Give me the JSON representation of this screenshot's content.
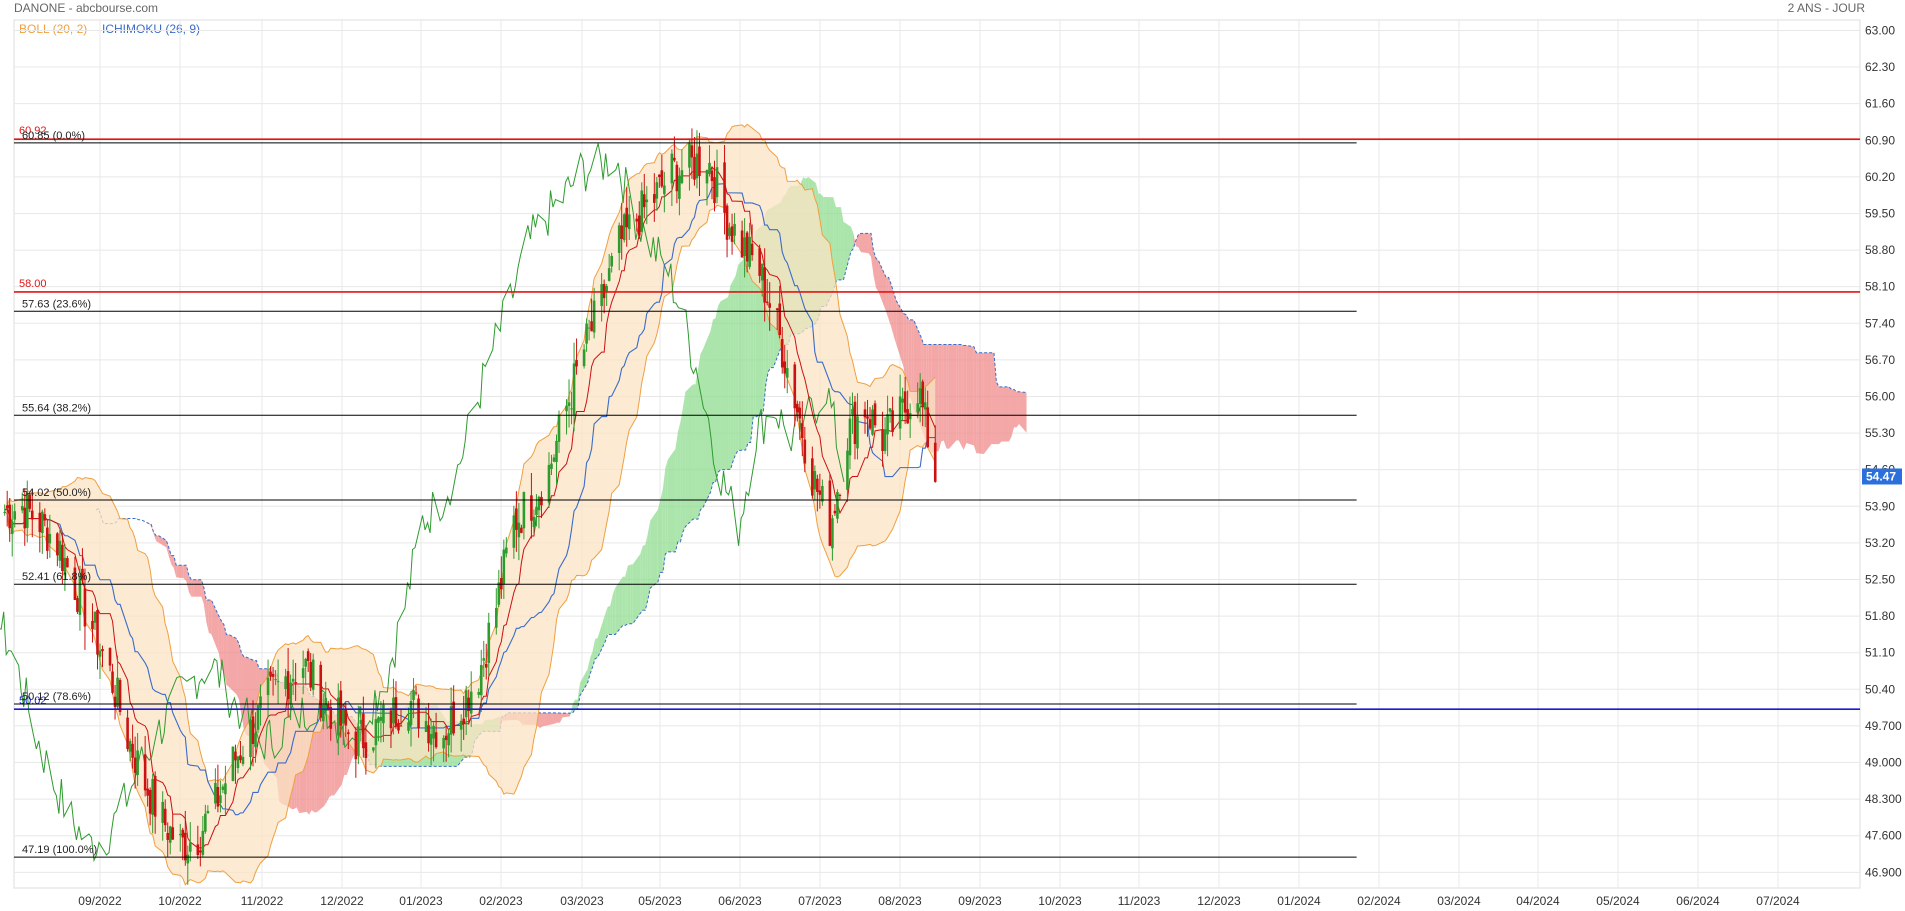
{
  "header": {
    "title": "DANONE - abcbourse.com",
    "period": "2 ANS - JOUR"
  },
  "indicators": {
    "boll": "BOLL (20, 2)",
    "ichimoku": "ICHIMOKU (26, 9)"
  },
  "colors": {
    "candle_up": "#2e9b2e",
    "candle_down": "#cc1111",
    "boll": "#f0a040",
    "boll_fill": "#fbe3c4",
    "tenkan": "#cc1111",
    "kijun": "#3a6cc8",
    "chikou": "#2e9b2e",
    "kumo_bull": "#8fdc8f",
    "kumo_bear": "#f08a8a",
    "resistance": "#e31414",
    "support": "#1a1ad6",
    "fib": "#000000",
    "price_tag": "#2a6fdb",
    "grid": "#e8e8e8"
  },
  "chart_data": {
    "type": "candlestick",
    "x_axis": {
      "ticks": [
        "09/2022",
        "10/2022",
        "11/2022",
        "12/2022",
        "01/2023",
        "02/2023",
        "03/2023",
        "05/2023",
        "06/2023",
        "07/2023",
        "08/2023",
        "09/2023",
        "10/2023",
        "11/2023",
        "12/2023",
        "01/2024",
        "02/2024",
        "03/2024",
        "04/2024",
        "05/2024",
        "06/2024",
        "07/2024"
      ]
    },
    "y_axis": {
      "range": [
        46.6,
        63.2
      ],
      "ticks": [
        "63.00",
        "62.30",
        "61.60",
        "60.90",
        "60.20",
        "59.50",
        "58.80",
        "58.10",
        "57.40",
        "56.70",
        "56.00",
        "55.30",
        "54.60",
        "53.90",
        "53.20",
        "52.50",
        "51.80",
        "51.10",
        "50.40",
        "49.700",
        "49.000",
        "48.300",
        "47.600",
        "46.900"
      ]
    },
    "last_price": "54.47",
    "horizontal_levels": [
      {
        "value": 60.92,
        "label": "60.92",
        "kind": "resistance"
      },
      {
        "value": 58.0,
        "label": "58.00",
        "kind": "resistance"
      },
      {
        "value": 50.02,
        "label": "50.02",
        "kind": "support"
      }
    ],
    "fibonacci": [
      {
        "value": 60.85,
        "label": "60.85  (0.0%)"
      },
      {
        "value": 57.63,
        "label": "57.63  (23.6%)"
      },
      {
        "value": 55.64,
        "label": "55.64  (38.2%)"
      },
      {
        "value": 54.02,
        "label": "54.02  (50.0%)"
      },
      {
        "value": 52.41,
        "label": "52.41  (61.8%)"
      },
      {
        "value": 50.12,
        "label": "50.12  (78.6%)"
      },
      {
        "value": 47.19,
        "label": "47.19  (100.0%)"
      }
    ],
    "close_series": [
      {
        "date": "2022-07-25",
        "close": 53.8
      },
      {
        "date": "2022-08-01",
        "close": 53.9
      },
      {
        "date": "2022-08-08",
        "close": 53.6
      },
      {
        "date": "2022-08-15",
        "close": 53.2
      },
      {
        "date": "2022-08-22",
        "close": 52.4
      },
      {
        "date": "2022-08-29",
        "close": 51.6
      },
      {
        "date": "2022-09-05",
        "close": 50.7
      },
      {
        "date": "2022-09-12",
        "close": 49.5
      },
      {
        "date": "2022-09-19",
        "close": 48.6
      },
      {
        "date": "2022-09-26",
        "close": 47.9
      },
      {
        "date": "2022-10-03",
        "close": 47.4
      },
      {
        "date": "2022-10-10",
        "close": 47.6
      },
      {
        "date": "2022-10-17",
        "close": 48.2
      },
      {
        "date": "2022-10-24",
        "close": 49.0
      },
      {
        "date": "2022-10-31",
        "close": 49.6
      },
      {
        "date": "2022-11-07",
        "close": 50.2
      },
      {
        "date": "2022-11-14",
        "close": 50.6
      },
      {
        "date": "2022-11-21",
        "close": 50.9
      },
      {
        "date": "2022-11-28",
        "close": 50.3
      },
      {
        "date": "2022-12-05",
        "close": 49.8
      },
      {
        "date": "2022-12-12",
        "close": 49.4
      },
      {
        "date": "2022-12-19",
        "close": 49.6
      },
      {
        "date": "2022-12-26",
        "close": 49.9
      },
      {
        "date": "2023-01-02",
        "close": 50.2
      },
      {
        "date": "2023-01-09",
        "close": 49.8
      },
      {
        "date": "2023-01-16",
        "close": 49.6
      },
      {
        "date": "2023-01-23",
        "close": 50.1
      },
      {
        "date": "2023-01-30",
        "close": 50.7
      },
      {
        "date": "2023-02-06",
        "close": 52.0
      },
      {
        "date": "2023-02-13",
        "close": 53.6
      },
      {
        "date": "2023-02-20",
        "close": 54.0
      },
      {
        "date": "2023-02-27",
        "close": 54.6
      },
      {
        "date": "2023-03-06",
        "close": 55.8
      },
      {
        "date": "2023-03-13",
        "close": 56.9
      },
      {
        "date": "2023-03-20",
        "close": 57.8
      },
      {
        "date": "2023-03-27",
        "close": 58.9
      },
      {
        "date": "2023-04-03",
        "close": 59.4
      },
      {
        "date": "2023-04-10",
        "close": 59.8
      },
      {
        "date": "2023-04-17",
        "close": 60.3
      },
      {
        "date": "2023-04-24",
        "close": 60.4
      },
      {
        "date": "2023-05-01",
        "close": 60.6
      },
      {
        "date": "2023-05-08",
        "close": 59.5
      },
      {
        "date": "2023-05-15",
        "close": 58.9
      },
      {
        "date": "2023-05-22",
        "close": 58.4
      },
      {
        "date": "2023-05-29",
        "close": 57.3
      },
      {
        "date": "2023-06-05",
        "close": 56.0
      },
      {
        "date": "2023-06-12",
        "close": 54.5
      },
      {
        "date": "2023-06-19",
        "close": 53.5
      },
      {
        "date": "2023-06-26",
        "close": 55.3
      },
      {
        "date": "2023-07-03",
        "close": 55.8
      },
      {
        "date": "2023-07-10",
        "close": 55.2
      },
      {
        "date": "2023-07-17",
        "close": 55.6
      },
      {
        "date": "2023-07-24",
        "close": 56.2
      },
      {
        "date": "2023-07-31",
        "close": 54.5
      }
    ]
  }
}
